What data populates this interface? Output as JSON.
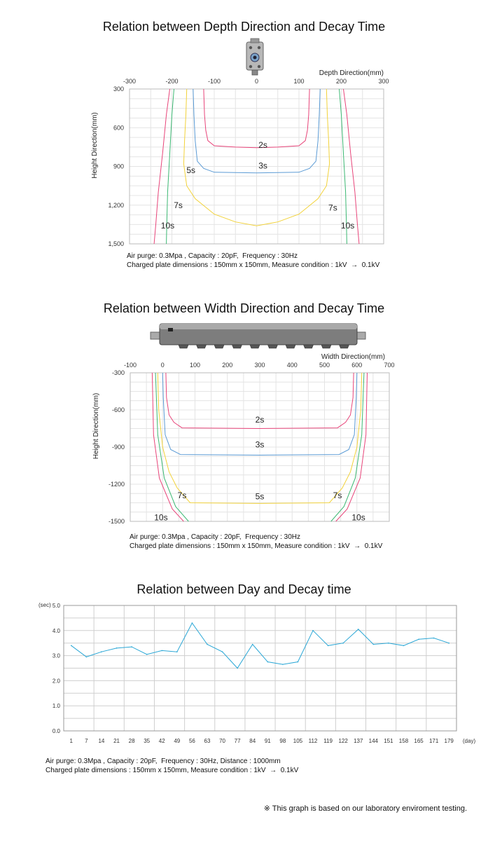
{
  "charts": [
    {
      "title": "Relation between Depth Direction and Decay Time",
      "notes": [
        "Air purge: 0.3Mpa , Capacity : 20pF,  Frequency : 30Hz",
        "Charged plate dimensions : 150mm x 150mm, Measure condition : 1kV  →  0.1kV"
      ]
    },
    {
      "title": "Relation between Width Direction and Decay Time",
      "notes": [
        "Air purge: 0.3Mpa , Capacity : 20pF,  Frequency : 30Hz",
        "Charged plate dimensions : 150mm x 150mm, Measure condition : 1kV  →  0.1kV"
      ]
    },
    {
      "title": "Relation between Day and Decay time",
      "notes": [
        "Air purge: 0.3Mpa , Capacity : 20pF,  Frequency : 30Hz, Distance : 1000mm",
        "Charged plate dimensions : 150mm x 150mm, Measure condition : 1kV  →  0.1kV"
      ]
    }
  ],
  "footnote": "※ This graph is based on our laboratory enviroment testing.",
  "chart_data": [
    {
      "type": "line",
      "title": "Relation between Depth Direction and Decay Time",
      "xlabel": "Depth Direction(mm)",
      "ylabel": "Height Direction(mm)",
      "xlim": [
        -300,
        300
      ],
      "ylim": [
        300,
        1500
      ],
      "y_inverted": true,
      "x_ticks": [
        "-300",
        "-200",
        "-100",
        "0",
        "100",
        "200",
        "300"
      ],
      "y_ticks": [
        "300",
        "600",
        "900",
        "1,200",
        "1,500"
      ],
      "grid": true,
      "series": [
        {
          "name": "2s",
          "color": "#e8457a",
          "label_at": [
            15,
            735
          ],
          "x": [
            -125,
            -123,
            -120,
            -115,
            -100,
            -50,
            0,
            50,
            100,
            115,
            120,
            123,
            125
          ],
          "y": [
            300,
            500,
            620,
            700,
            740,
            750,
            755,
            750,
            740,
            700,
            620,
            500,
            300
          ]
        },
        {
          "name": "3s",
          "color": "#5b9bd5",
          "label_at": [
            15,
            895
          ],
          "x": [
            -150,
            -148,
            -145,
            -140,
            -125,
            -100,
            0,
            100,
            125,
            140,
            145,
            148,
            150
          ],
          "y": [
            300,
            500,
            700,
            860,
            915,
            945,
            950,
            945,
            915,
            860,
            700,
            500,
            300
          ]
        },
        {
          "name": "5s",
          "color": "#f2d23a",
          "label_at": [
            -155,
            930
          ],
          "x": [
            -165,
            -167,
            -170,
            -172,
            -165,
            -145,
            -100,
            -50,
            0,
            50,
            100,
            145,
            165,
            172,
            170,
            167,
            165
          ],
          "y": [
            300,
            500,
            700,
            880,
            1050,
            1150,
            1270,
            1330,
            1360,
            1330,
            1270,
            1150,
            1050,
            880,
            700,
            500,
            300
          ]
        },
        {
          "name": "7s",
          "color": "#3cb873",
          "label_at": [
            -185,
            1200
          ],
          "x": [
            -195,
            -200,
            -205,
            -210,
            -212,
            -213
          ],
          "y": [
            300,
            500,
            800,
            1100,
            1350,
            1500
          ]
        },
        {
          "name": "7s",
          "color": "#3cb873",
          "label_at": [
            180,
            1220
          ],
          "x": [
            195,
            200,
            205,
            210,
            212,
            213
          ],
          "y": [
            300,
            500,
            800,
            1100,
            1350,
            1500
          ]
        },
        {
          "name": "10s",
          "color": "#e8457a",
          "label_at": [
            -210,
            1360
          ],
          "x": [
            -205,
            -213,
            -222,
            -232,
            -238,
            -242
          ],
          "y": [
            300,
            500,
            800,
            1100,
            1350,
            1500
          ]
        },
        {
          "name": "10s",
          "color": "#e8457a",
          "label_at": [
            215,
            1360
          ],
          "x": [
            205,
            213,
            222,
            232,
            238,
            242
          ],
          "y": [
            300,
            500,
            800,
            1100,
            1350,
            1500
          ]
        }
      ]
    },
    {
      "type": "line",
      "title": "Relation between Width Direction and Decay Time",
      "xlabel": "Width Direction(mm)",
      "ylabel": "Height Direction(mm)",
      "xlim": [
        -100,
        700
      ],
      "ylim": [
        -300,
        -1500
      ],
      "y_inverted": true,
      "x_ticks": [
        "-100",
        "0",
        "100",
        "200",
        "300",
        "400",
        "500",
        "600",
        "700"
      ],
      "y_ticks": [
        "-300",
        "-600",
        "-900",
        "-1200",
        "-1500"
      ],
      "grid": true,
      "series": [
        {
          "name": "2s",
          "color": "#e8457a",
          "label_at": [
            300,
            -680
          ],
          "x": [
            10,
            12,
            20,
            35,
            60,
            300,
            540,
            565,
            580,
            588,
            590
          ],
          "y": [
            -300,
            -500,
            -640,
            -700,
            -745,
            -750,
            -745,
            -700,
            -640,
            -500,
            -300
          ]
        },
        {
          "name": "3s",
          "color": "#5b9bd5",
          "label_at": [
            300,
            -880
          ],
          "x": [
            0,
            2,
            8,
            25,
            55,
            300,
            545,
            575,
            592,
            598,
            600
          ],
          "y": [
            -300,
            -500,
            -800,
            -920,
            -960,
            -965,
            -960,
            -920,
            -800,
            -500,
            -300
          ]
        },
        {
          "name": "5s",
          "color": "#f2d23a",
          "label_at": [
            300,
            -1300
          ],
          "x": [
            -15,
            -12,
            0,
            20,
            45,
            85,
            300,
            515,
            555,
            580,
            600,
            612,
            615
          ],
          "y": [
            -300,
            -600,
            -900,
            -1100,
            -1230,
            -1350,
            -1355,
            -1350,
            -1230,
            -1100,
            -900,
            -600,
            -300
          ]
        },
        {
          "name": "7s",
          "color": "#3cb873",
          "label_at": [
            60,
            -1290
          ],
          "x": [
            -22,
            -15,
            5,
            40,
            80
          ],
          "y": [
            -300,
            -800,
            -1150,
            -1380,
            -1500
          ]
        },
        {
          "name": "7s",
          "color": "#3cb873",
          "label_at": [
            540,
            -1290
          ],
          "x": [
            622,
            615,
            595,
            560,
            520
          ],
          "y": [
            -300,
            -800,
            -1150,
            -1380,
            -1500
          ]
        },
        {
          "name": "10s",
          "color": "#e8457a",
          "label_at": [
            -5,
            -1470
          ],
          "x": [
            -32,
            -28,
            -10,
            30,
            65
          ],
          "y": [
            -300,
            -800,
            -1150,
            -1400,
            -1500
          ]
        },
        {
          "name": "10s",
          "color": "#e8457a",
          "label_at": [
            605,
            -1470
          ],
          "x": [
            632,
            628,
            610,
            570,
            535
          ],
          "y": [
            -300,
            -800,
            -1150,
            -1400,
            -1500
          ]
        }
      ]
    },
    {
      "type": "line",
      "title": "Relation between Day and Decay time",
      "xlabel": "(day)",
      "ylabel": "(sec)",
      "ylim": [
        0,
        5
      ],
      "y_ticks": [
        "0.0",
        "1.0",
        "2.0",
        "3.0",
        "4.0",
        "5.0"
      ],
      "grid": true,
      "categories": [
        "1",
        "7",
        "14",
        "21",
        "28",
        "35",
        "42",
        "49",
        "56",
        "63",
        "70",
        "77",
        "84",
        "91",
        "98",
        "105",
        "112",
        "119",
        "122",
        "137",
        "144",
        "151",
        "158",
        "165",
        "171",
        "179"
      ],
      "series": [
        {
          "color": "#2aa7d6",
          "values": [
            3.4,
            2.95,
            3.15,
            3.3,
            3.35,
            3.05,
            3.2,
            3.15,
            4.3,
            3.45,
            3.15,
            2.5,
            3.45,
            2.75,
            2.65,
            2.75,
            4.0,
            3.4,
            3.5,
            4.05,
            3.45,
            3.5,
            3.4,
            3.65,
            3.7,
            3.5
          ]
        }
      ]
    }
  ]
}
